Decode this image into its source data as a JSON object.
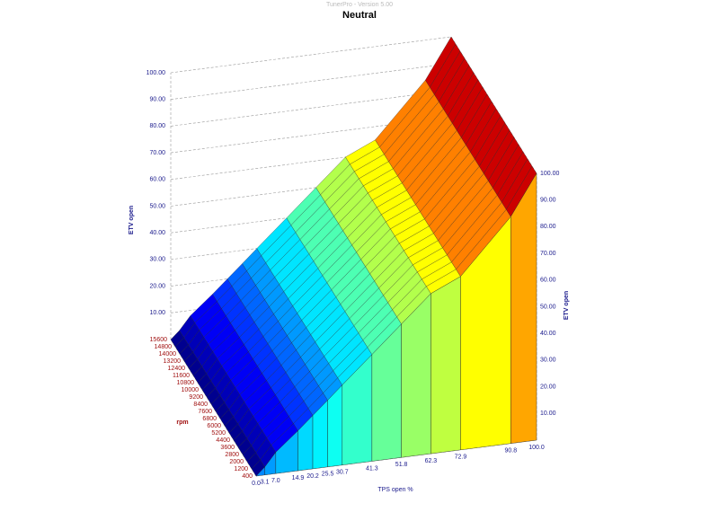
{
  "window_title": "TunerPro - Version 5.00",
  "chart_data": {
    "type": "surface",
    "title": "Neutral",
    "x_label": "TPS open %",
    "y_label": "rpm",
    "z_label": "ETV open",
    "x": [
      0,
      3.1,
      7.0,
      14.9,
      20.2,
      25.5,
      30.7,
      41.3,
      51.8,
      62.3,
      72.9,
      90.8,
      100
    ],
    "values": [
      0,
      3,
      8,
      15,
      20,
      25,
      30,
      40,
      50,
      60,
      65,
      85,
      100
    ],
    "xlim": [
      0,
      100
    ],
    "xticks": [
      {
        "value": 0,
        "label": "0.0"
      },
      {
        "value": 3.1,
        "label": "3.1"
      },
      {
        "value": 7.0,
        "label": "7.0"
      },
      14.9,
      20.2,
      25.5,
      30.7,
      41.3,
      51.8,
      62.3,
      72.9,
      90.8,
      {
        "value": 100,
        "label": "100.0"
      }
    ],
    "ylim": [
      400,
      15600
    ],
    "yticks": [
      400,
      1200,
      2000,
      2800,
      3600,
      4400,
      5200,
      6000,
      6800,
      7600,
      8400,
      9200,
      10000,
      10800,
      11600,
      12400,
      13200,
      14000,
      14800,
      15600
    ],
    "zlim": [
      0,
      100
    ],
    "zticks": [
      {
        "value": 10,
        "label": "10.00"
      },
      {
        "value": 20,
        "label": "20.00"
      },
      {
        "value": 30,
        "label": "30.00"
      },
      {
        "value": 40,
        "label": "40.00"
      },
      {
        "value": 50,
        "label": "50.00"
      },
      {
        "value": 60,
        "label": "60.00"
      },
      {
        "value": 70,
        "label": "70.00"
      },
      {
        "value": 80,
        "label": "80.00"
      },
      {
        "value": 90,
        "label": "90.00"
      },
      {
        "value": 100,
        "label": "100.00"
      }
    ],
    "grid": true
  }
}
